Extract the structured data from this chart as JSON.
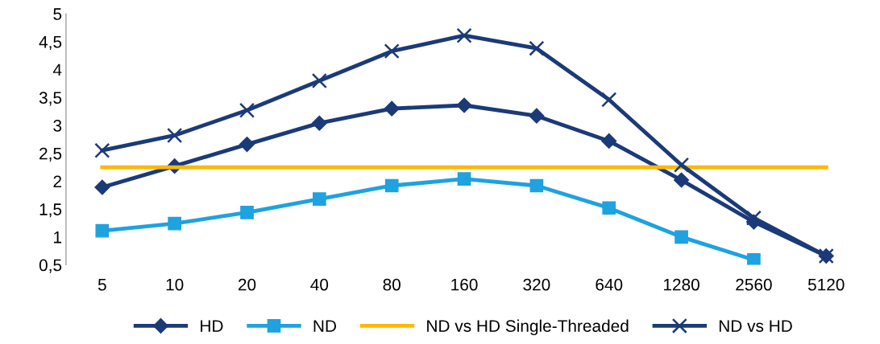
{
  "chart_data": {
    "type": "line",
    "categories": [
      "5",
      "10",
      "20",
      "40",
      "80",
      "160",
      "320",
      "640",
      "1280",
      "2560",
      "5120"
    ],
    "ylim": [
      0.5,
      5
    ],
    "yticks": [
      {
        "value": 0.5,
        "label": "0,5"
      },
      1,
      {
        "value": 1.5,
        "label": "1,5"
      },
      2,
      {
        "value": 2.5,
        "label": "2,5"
      },
      3,
      {
        "value": 3.5,
        "label": "3,5"
      },
      4,
      {
        "value": 4.5,
        "label": "4,5"
      },
      5
    ],
    "grid": false,
    "legend": "bottom",
    "series": [
      {
        "name": "HD",
        "color": "#1b3a78",
        "marker": "diamond",
        "values": [
          1.89,
          2.27,
          2.66,
          3.04,
          3.3,
          3.36,
          3.17,
          2.72,
          2.02,
          1.27,
          0.66
        ]
      },
      {
        "name": "ND",
        "color": "#1ea2e0",
        "marker": "square",
        "values": [
          1.11,
          1.24,
          1.44,
          1.68,
          1.92,
          2.04,
          1.92,
          1.52,
          1.0,
          0.59,
          null
        ]
      },
      {
        "name": "ND vs HD Single-Threaded",
        "color": "#ffb800",
        "marker": "none",
        "values": [
          2.25,
          2.25,
          2.25,
          2.25,
          2.25,
          2.25,
          2.25,
          2.25,
          2.25,
          2.25,
          2.25
        ]
      },
      {
        "name": "ND vs HD",
        "color": "#1b3a78",
        "marker": "cross",
        "values": [
          2.55,
          2.82,
          3.27,
          3.8,
          4.33,
          4.61,
          4.38,
          3.46,
          2.29,
          1.34,
          0.66
        ]
      }
    ]
  }
}
